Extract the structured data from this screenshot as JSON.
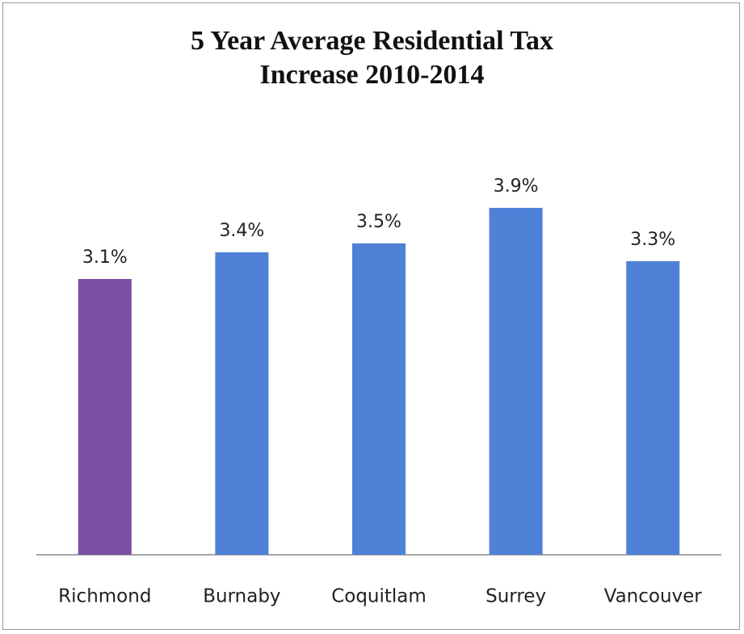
{
  "chart_data": {
    "type": "bar",
    "title": "5 Year Average Residential Tax Increase 2010-2014",
    "categories": [
      "Richmond",
      "Burnaby",
      "Coquitlam",
      "Surrey",
      "Vancouver"
    ],
    "values": [
      3.1,
      3.4,
      3.5,
      3.9,
      3.3
    ],
    "value_labels": [
      "3.1%",
      "3.4%",
      "3.5%",
      "3.9%",
      "3.3%"
    ],
    "colors": [
      "#7b4ea3",
      "#4f81d6",
      "#4f81d6",
      "#4f81d6",
      "#4f81d6"
    ]
  }
}
